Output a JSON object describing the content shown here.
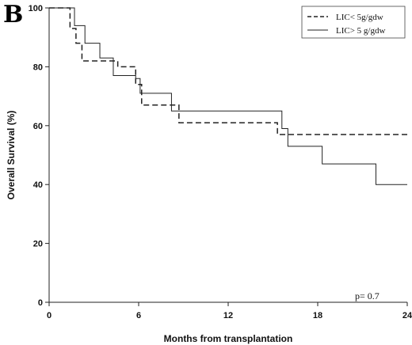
{
  "panel_label": "B",
  "chart_data": {
    "type": "line",
    "title": "",
    "xlabel": "Months from transplantation",
    "ylabel": "Overall Survival (%)",
    "xlim": [
      0,
      24
    ],
    "ylim": [
      0,
      100
    ],
    "x_ticks": [
      0,
      6,
      12,
      18,
      24
    ],
    "y_ticks": [
      0,
      20,
      40,
      60,
      80,
      100
    ],
    "grid": false,
    "legend_position": "top-right",
    "step": true,
    "series": [
      {
        "name": "LIC< 5g/gdw",
        "style": "dashed",
        "color": "#222222",
        "x": [
          0,
          1.0,
          1.4,
          1.8,
          2.2,
          3.6,
          4.6,
          5.8,
          6.2,
          8.2,
          8.7,
          15.3,
          24
        ],
        "y": [
          100,
          100,
          93,
          88,
          82,
          82,
          80,
          74,
          67,
          67,
          61,
          57,
          57
        ]
      },
      {
        "name": "LIC> 5 g/gdw",
        "style": "solid",
        "color": "#222222",
        "x": [
          0,
          1.4,
          1.7,
          2.4,
          3.4,
          4.3,
          5.8,
          6.1,
          8.2,
          15.3,
          15.6,
          16.0,
          18.3,
          21.9,
          24
        ],
        "y": [
          100,
          100,
          94,
          88,
          83,
          77,
          76,
          71,
          65,
          65,
          59,
          53,
          47,
          40,
          40
        ]
      }
    ],
    "annotations": [
      "p= 0.7"
    ]
  }
}
